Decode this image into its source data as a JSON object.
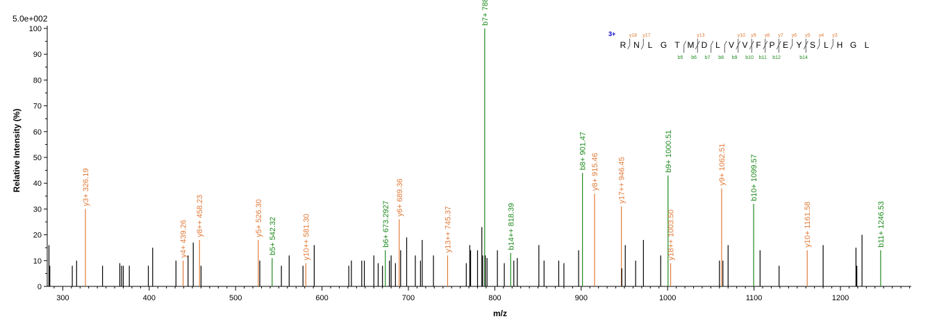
{
  "colors": {
    "y_ion": "#e07b39",
    "b_ion": "#1e8a1e",
    "unassigned": "#000000",
    "charge": "#0000cc",
    "axis": "#000000"
  },
  "chart_data": {
    "type": "bar",
    "scale_label": "5.0e+002",
    "xlabel": "m/z",
    "ylabel": "Relative   Intensity (%)",
    "xlim": [
      282,
      1282
    ],
    "ylim": [
      0,
      100
    ],
    "x_ticks": [
      300,
      400,
      500,
      600,
      700,
      800,
      900,
      1000,
      1100,
      1200
    ],
    "y_ticks": [
      0,
      10,
      20,
      30,
      40,
      50,
      60,
      70,
      80,
      90,
      100
    ],
    "peaks": [
      {
        "mz": 284,
        "i": 16
      },
      {
        "mz": 285,
        "i": 8
      },
      {
        "mz": 311,
        "i": 8
      },
      {
        "mz": 316,
        "i": 10
      },
      {
        "mz": 326.19,
        "i": 30,
        "label": "y3+ 326.19",
        "ion": "y"
      },
      {
        "mz": 346,
        "i": 8
      },
      {
        "mz": 366,
        "i": 9
      },
      {
        "mz": 368,
        "i": 8
      },
      {
        "mz": 370,
        "i": 8
      },
      {
        "mz": 377,
        "i": 8
      },
      {
        "mz": 399,
        "i": 8
      },
      {
        "mz": 404,
        "i": 15
      },
      {
        "mz": 431,
        "i": 10
      },
      {
        "mz": 439.26,
        "i": 10,
        "label": "y4+ 439.26",
        "ion": "y"
      },
      {
        "mz": 445,
        "i": 12
      },
      {
        "mz": 451,
        "i": 17
      },
      {
        "mz": 458.23,
        "i": 18,
        "label": "y8++ 458.23",
        "ion": "y"
      },
      {
        "mz": 460,
        "i": 8
      },
      {
        "mz": 526.3,
        "i": 18,
        "label": "y5+ 526.30",
        "ion": "y"
      },
      {
        "mz": 528,
        "i": 10
      },
      {
        "mz": 542.32,
        "i": 11,
        "label": "b5+ 542.32",
        "ion": "b"
      },
      {
        "mz": 553,
        "i": 8
      },
      {
        "mz": 562,
        "i": 12
      },
      {
        "mz": 578,
        "i": 8
      },
      {
        "mz": 581.3,
        "i": 9,
        "label": "y10++ 581.30",
        "ion": "y"
      },
      {
        "mz": 591,
        "i": 16
      },
      {
        "mz": 631,
        "i": 8
      },
      {
        "mz": 634,
        "i": 10
      },
      {
        "mz": 646,
        "i": 10
      },
      {
        "mz": 649,
        "i": 10
      },
      {
        "mz": 660,
        "i": 12
      },
      {
        "mz": 665,
        "i": 9
      },
      {
        "mz": 670,
        "i": 8
      },
      {
        "mz": 673.29,
        "i": 14,
        "label": "b6+ 673.2927",
        "ion": "b"
      },
      {
        "mz": 678,
        "i": 10
      },
      {
        "mz": 680,
        "i": 12
      },
      {
        "mz": 685,
        "i": 9
      },
      {
        "mz": 689.36,
        "i": 26,
        "label": "y6+ 689.36",
        "ion": "y"
      },
      {
        "mz": 691,
        "i": 14
      },
      {
        "mz": 698,
        "i": 19
      },
      {
        "mz": 708,
        "i": 12
      },
      {
        "mz": 714,
        "i": 10
      },
      {
        "mz": 716,
        "i": 18
      },
      {
        "mz": 729,
        "i": 12
      },
      {
        "mz": 745.37,
        "i": 12,
        "label": "y13++ 745.37",
        "ion": "y"
      },
      {
        "mz": 767,
        "i": 9
      },
      {
        "mz": 771,
        "i": 16
      },
      {
        "mz": 772,
        "i": 14
      },
      {
        "mz": 780,
        "i": 14
      },
      {
        "mz": 785,
        "i": 23
      },
      {
        "mz": 786,
        "i": 12
      },
      {
        "mz": 788.3,
        "i": 100,
        "label": "b7+ 788.30",
        "ion": "b"
      },
      {
        "mz": 789,
        "i": 12
      },
      {
        "mz": 791,
        "i": 11
      },
      {
        "mz": 803,
        "i": 14
      },
      {
        "mz": 811,
        "i": 9
      },
      {
        "mz": 818.39,
        "i": 13,
        "label": "b14++ 818.39",
        "ion": "b"
      },
      {
        "mz": 822,
        "i": 10
      },
      {
        "mz": 826,
        "i": 11
      },
      {
        "mz": 851,
        "i": 16
      },
      {
        "mz": 857,
        "i": 10
      },
      {
        "mz": 874,
        "i": 10
      },
      {
        "mz": 880,
        "i": 9
      },
      {
        "mz": 897,
        "i": 14
      },
      {
        "mz": 901.47,
        "i": 44,
        "label": "b8+ 901.47",
        "ion": "b"
      },
      {
        "mz": 915.46,
        "i": 36,
        "label": "y8+ 915.46",
        "ion": "y"
      },
      {
        "mz": 946.45,
        "i": 31,
        "label": "y17++ 946.45",
        "ion": "y"
      },
      {
        "mz": 947,
        "i": 7
      },
      {
        "mz": 951,
        "i": 16
      },
      {
        "mz": 963,
        "i": 10
      },
      {
        "mz": 972,
        "i": 18
      },
      {
        "mz": 992,
        "i": 12
      },
      {
        "mz": 1000.51,
        "i": 43,
        "label": "b9+ 1000.51",
        "ion": "b"
      },
      {
        "mz": 1003.5,
        "i": 9,
        "label": "y18++ 1003.50",
        "ion": "y"
      },
      {
        "mz": 1060,
        "i": 10
      },
      {
        "mz": 1062.51,
        "i": 38,
        "label": "y9+ 1062.51",
        "ion": "y"
      },
      {
        "mz": 1064,
        "i": 10
      },
      {
        "mz": 1070,
        "i": 16
      },
      {
        "mz": 1099.57,
        "i": 32,
        "label": "b10+ 1099.57",
        "ion": "b"
      },
      {
        "mz": 1107,
        "i": 14
      },
      {
        "mz": 1129,
        "i": 8
      },
      {
        "mz": 1161.58,
        "i": 14,
        "label": "y10+ 1161.58",
        "ion": "y"
      },
      {
        "mz": 1180,
        "i": 16
      },
      {
        "mz": 1218,
        "i": 15
      },
      {
        "mz": 1219,
        "i": 8
      },
      {
        "mz": 1225,
        "i": 20
      },
      {
        "mz": 1246.53,
        "i": 14,
        "label": "b11+ 1246.53",
        "ion": "b"
      }
    ]
  },
  "sequence": {
    "charge": "3+",
    "residues": [
      "R",
      "N",
      "L",
      "G",
      "T",
      "M",
      "D",
      "L",
      "V",
      "V",
      "F",
      "P",
      "E",
      "Y",
      "S",
      "L",
      "H",
      "G",
      "L"
    ],
    "y_ions_top": [
      {
        "after": 1,
        "label": "y",
        "sub": "18"
      },
      {
        "after": 2,
        "label": "y",
        "sub": "17"
      },
      {
        "after": 6,
        "label": "y",
        "sub": "13"
      },
      {
        "after": 9,
        "label": "y",
        "sub": "10"
      },
      {
        "after": 10,
        "label": "y",
        "sub": "9"
      },
      {
        "after": 11,
        "label": "y",
        "sub": "8"
      },
      {
        "after": 12,
        "label": "y",
        "sub": "7"
      },
      {
        "after": 13,
        "label": "y",
        "sub": "6"
      },
      {
        "after": 14,
        "label": "y",
        "sub": "5"
      },
      {
        "after": 15,
        "label": "y",
        "sub": "4"
      },
      {
        "after": 16,
        "label": "y",
        "sub": "3"
      }
    ],
    "b_ions_bottom": [
      {
        "after": 5,
        "label": "b",
        "sub": "5"
      },
      {
        "after": 6,
        "label": "b",
        "sub": "6"
      },
      {
        "after": 7,
        "label": "b",
        "sub": "7"
      },
      {
        "after": 8,
        "label": "b",
        "sub": "8"
      },
      {
        "after": 9,
        "label": "b",
        "sub": "9"
      },
      {
        "after": 10,
        "label": "b",
        "sub": "10"
      },
      {
        "after": 11,
        "label": "b",
        "sub": "11"
      },
      {
        "after": 12,
        "label": "b",
        "sub": "12"
      },
      {
        "after": 14,
        "label": "b",
        "sub": "14"
      }
    ]
  }
}
